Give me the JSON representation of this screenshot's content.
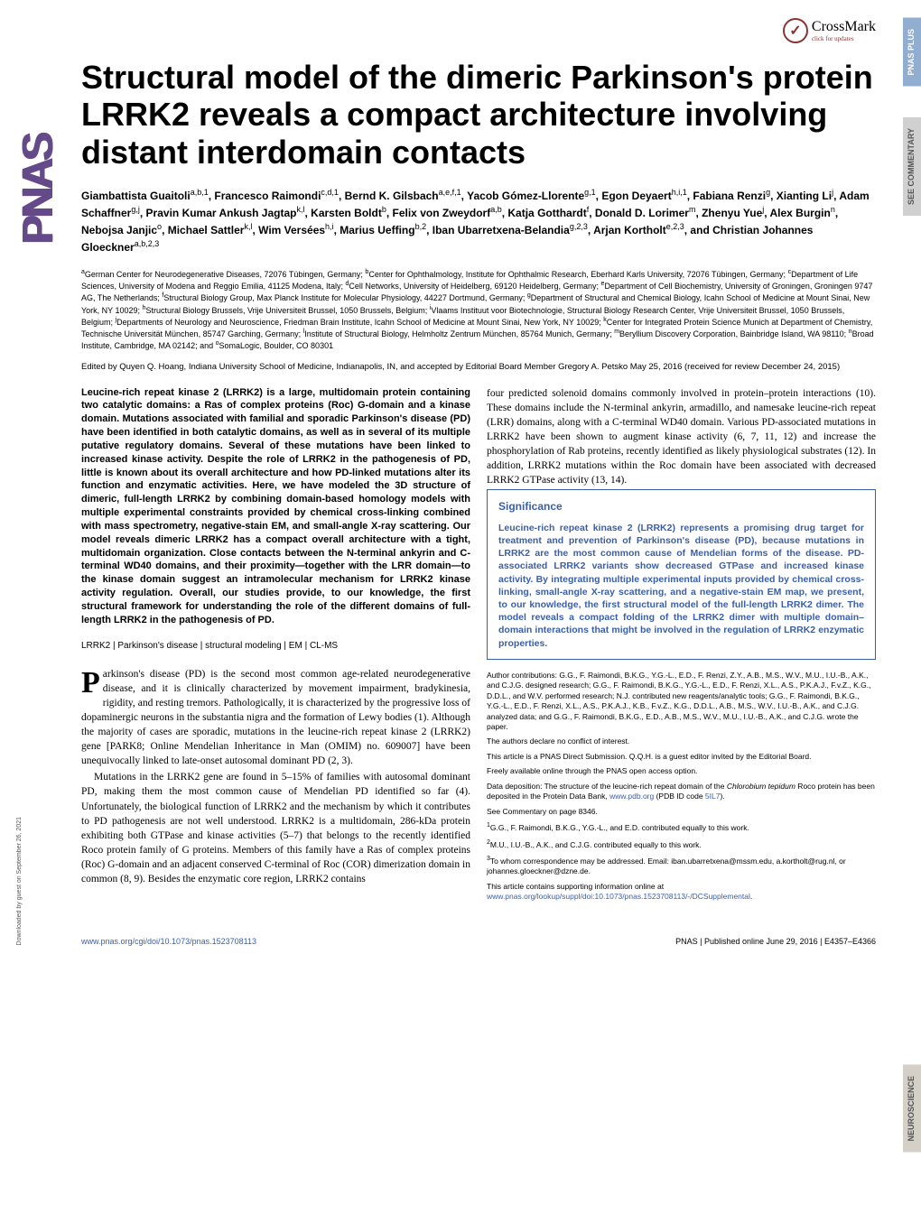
{
  "crossmark": {
    "label": "CrossMark",
    "sub": "click for updates"
  },
  "sidebar": {
    "pnas": "PNAS"
  },
  "tabs": {
    "pnas_plus": "PNAS PLUS",
    "commentary": "SEE COMMENTARY",
    "neuroscience": "NEUROSCIENCE"
  },
  "title": "Structural model of the dimeric Parkinson's protein LRRK2 reveals a compact architecture involving distant interdomain contacts",
  "authors_html": "Giambattista Guaitoli<sup>a,b,1</sup>, Francesco Raimondi<sup>c,d,1</sup>, Bernd K. Gilsbach<sup>a,e,f,1</sup>, Yacob Gómez-Llorente<sup>g,1</sup>, Egon Deyaert<sup>h,i,1</sup>, Fabiana Renzi<sup>g</sup>, Xianting Li<sup>j</sup>, Adam Schaffner<sup>g,j</sup>, Pravin Kumar Ankush Jagtap<sup>k,l</sup>, Karsten Boldt<sup>b</sup>, Felix von Zweydorf<sup>a,b</sup>, Katja Gotthardt<sup>f</sup>, Donald D. Lorimer<sup>m</sup>, Zhenyu Yue<sup>j</sup>, Alex Burgin<sup>n</sup>, Nebojsa Janjic<sup>o</sup>, Michael Sattler<sup>k,l</sup>, Wim Versées<sup>h,i</sup>, Marius Ueffing<sup>b,2</sup>, Iban Ubarretxena-Belandia<sup>g,2,3</sup>, Arjan Kortholt<sup>e,2,3</sup>, and Christian Johannes Gloeckner<sup>a,b,2,3</sup>",
  "affiliations_html": "<sup>a</sup>German Center for Neurodegenerative Diseases, 72076 Tübingen, Germany; <sup>b</sup>Center for Ophthalmology, Institute for Ophthalmic Research, Eberhard Karls University, 72076 Tübingen, Germany; <sup>c</sup>Department of Life Sciences, University of Modena and Reggio Emilia, 41125 Modena, Italy; <sup>d</sup>Cell Networks, University of Heidelberg, 69120 Heidelberg, Germany; <sup>e</sup>Department of Cell Biochemistry, University of Groningen, Groningen 9747 AG, The Netherlands; <sup>f</sup>Structural Biology Group, Max Planck Institute for Molecular Physiology, 44227 Dortmund, Germany; <sup>g</sup>Department of Structural and Chemical Biology, Icahn School of Medicine at Mount Sinai, New York, NY 10029; <sup>h</sup>Structural Biology Brussels, Vrije Universiteit Brussel, 1050 Brussels, Belgium; <sup>i</sup>Vlaams Instituut voor Biotechnologie, Structural Biology Research Center, Vrije Universiteit Brussel, 1050 Brussels, Belgium; <sup>j</sup>Departments of Neurology and Neuroscience, Friedman Brain Institute, Icahn School of Medicine at Mount Sinai, New York, NY 10029; <sup>k</sup>Center for Integrated Protein Science Munich at Department of Chemistry, Technische Universität München, 85747 Garching, Germany; <sup>l</sup>Institute of Structural Biology, Helmholtz Zentrum München, 85764 Munich, Germany; <sup>m</sup>Beryllium Discovery Corporation, Bainbridge Island, WA 98110; <sup>n</sup>Broad Institute, Cambridge, MA 02142; and <sup>o</sup>SomaLogic, Boulder, CO 80301",
  "editor_note": "Edited by Quyen Q. Hoang, Indiana University School of Medicine, Indianapolis, IN, and accepted by Editorial Board Member Gregory A. Petsko May 25, 2016 (received for review December 24, 2015)",
  "abstract": "Leucine-rich repeat kinase 2 (LRRK2) is a large, multidomain protein containing two catalytic domains: a Ras of complex proteins (Roc) G-domain and a kinase domain. Mutations associated with familial and sporadic Parkinson's disease (PD) have been identified in both catalytic domains, as well as in several of its multiple putative regulatory domains. Several of these mutations have been linked to increased kinase activity. Despite the role of LRRK2 in the pathogenesis of PD, little is known about its overall architecture and how PD-linked mutations alter its function and enzymatic activities. Here, we have modeled the 3D structure of dimeric, full-length LRRK2 by combining domain-based homology models with multiple experimental constraints provided by chemical cross-linking combined with mass spectrometry, negative-stain EM, and small-angle X-ray scattering. Our model reveals dimeric LRRK2 has a compact overall architecture with a tight, multidomain organization. Close contacts between the N-terminal ankyrin and C-terminal WD40 domains, and their proximity—together with the LRR domain—to the kinase domain suggest an intramolecular mechanism for LRRK2 kinase activity regulation. Overall, our studies provide, to our knowledge, the first structural framework for understanding the role of the different domains of full-length LRRK2 in the pathogenesis of PD.",
  "keywords": "LRRK2 | Parkinson's disease | structural modeling | EM | CL-MS",
  "body": {
    "p1": "arkinson's disease (PD) is the second most common age-related neurodegenerative disease, and it is clinically characterized by movement impairment, bradykinesia, rigidity, and resting tremors. Pathologically, it is characterized by the progressive loss of dopaminergic neurons in the substantia nigra and the formation of Lewy bodies (1). Although the majority of cases are sporadic, mutations in the leucine-rich repeat kinase 2 (LRRK2) gene [PARK8; Online Mendelian Inheritance in Man (OMIM) no. 609007] have been unequivocally linked to late-onset autosomal dominant PD (2, 3).",
    "p2": "Mutations in the LRRK2 gene are found in 5–15% of families with autosomal dominant PD, making them the most common cause of Mendelian PD identified so far (4). Unfortunately, the biological function of LRRK2 and the mechanism by which it contributes to PD pathogenesis are not well understood. LRRK2 is a multidomain, 286-kDa protein exhibiting both GTPase and kinase activities (5–7) that belongs to the recently identified Roco protein family of G proteins. Members of this family have a Ras of complex proteins (Roc) G-domain and an adjacent conserved C-terminal of Roc (COR) dimerization domain in common (8, 9). Besides the enzymatic core region, LRRK2 contains",
    "p3": "four predicted solenoid domains commonly involved in protein–protein interactions (10). These domains include the N-terminal ankyrin, armadillo, and namesake leucine-rich repeat (LRR) domains, along with a C-terminal WD40 domain. Various PD-associated mutations in LRRK2 have been shown to augment kinase activity (6, 7, 11, 12) and increase the phosphorylation of Rab proteins, recently identified as likely physiological substrates (12). In addition, LRRK2 mutations within the Roc domain have been associated with decreased LRRK2 GTPase activity (13, 14)."
  },
  "significance": {
    "title": "Significance",
    "text": "Leucine-rich repeat kinase 2 (LRRK2) represents a promising drug target for treatment and prevention of Parkinson's disease (PD), because mutations in LRRK2 are the most common cause of Mendelian forms of the disease. PD-associated LRRK2 variants show decreased GTPase and increased kinase activity. By integrating multiple experimental inputs provided by chemical cross-linking, small-angle X-ray scattering, and a negative-stain EM map, we present, to our knowledge, the first structural model of the full-length LRRK2 dimer. The model reveals a compact folding of the LRRK2 dimer with multiple domain–domain interactions that might be involved in the regulation of LRRK2 enzymatic properties."
  },
  "footnotes": {
    "contributions": "Author contributions: G.G., F. Raimondi, B.K.G., Y.G.-L., E.D., F. Renzi, Z.Y., A.B., M.S., W.V., M.U., I.U.-B., A.K., and C.J.G. designed research; G.G., F. Raimondi, B.K.G., Y.G.-L., E.D., F. Renzi, X.L., A.S., P.K.A.J., F.v.Z., K.G., D.D.L., and W.V. performed research; N.J. contributed new reagents/analytic tools; G.G., F. Raimondi, B.K.G., Y.G.-L., E.D., F. Renzi, X.L., A.S., P.K.A.J., K.B., F.v.Z., K.G., D.D.L., A.B., M.S., W.V., I.U.-B., A.K., and C.J.G. analyzed data; and G.G., F. Raimondi, B.K.G., E.D., A.B., M.S., W.V., M.U., I.U.-B., A.K., and C.J.G. wrote the paper.",
    "conflict": "The authors declare no conflict of interest.",
    "direct": "This article is a PNAS Direct Submission. Q.Q.H. is a guest editor invited by the Editorial Board.",
    "openaccess": "Freely available online through the PNAS open access option.",
    "deposition_pre": "Data deposition: The structure of the leucine-rich repeat domain of the ",
    "deposition_mid": "Chlorobium tepidum",
    "deposition_post": " Roco protein has been deposited in the Protein Data Bank, ",
    "deposition_link": "www.pdb.org",
    "deposition_pdb": " (PDB ID code ",
    "deposition_code": "5IL7",
    "deposition_end": ").",
    "commentary": "See Commentary on page 8346.",
    "equal1_pre": "G.G., F. Raimondi, B.K.G., Y.G.-L., and E.D. contributed equally to this work.",
    "equal2_pre": "M.U., I.U.-B., A.K., and C.J.G. contributed equally to this work.",
    "correspondence": "To whom correspondence may be addressed. Email: iban.ubarretxena@mssm.edu, a.kortholt@rug.nl, or johannes.gloeckner@dzne.de.",
    "supporting_pre": "This article contains supporting information online at ",
    "supporting_link": "www.pnas.org/lookup/suppl/doi:10.1073/pnas.1523708113/-/DCSupplemental",
    "supporting_end": "."
  },
  "footer": {
    "doi": "www.pnas.org/cgi/doi/10.1073/pnas.1523708113",
    "right": "PNAS | Published online June 29, 2016 | E4357–E4366"
  },
  "download_note": "Downloaded by guest on September 26, 2021",
  "colors": {
    "link": "#3a5fa8",
    "pnas_purple": "#654a8a",
    "crossmark_red": "#8a3335"
  }
}
